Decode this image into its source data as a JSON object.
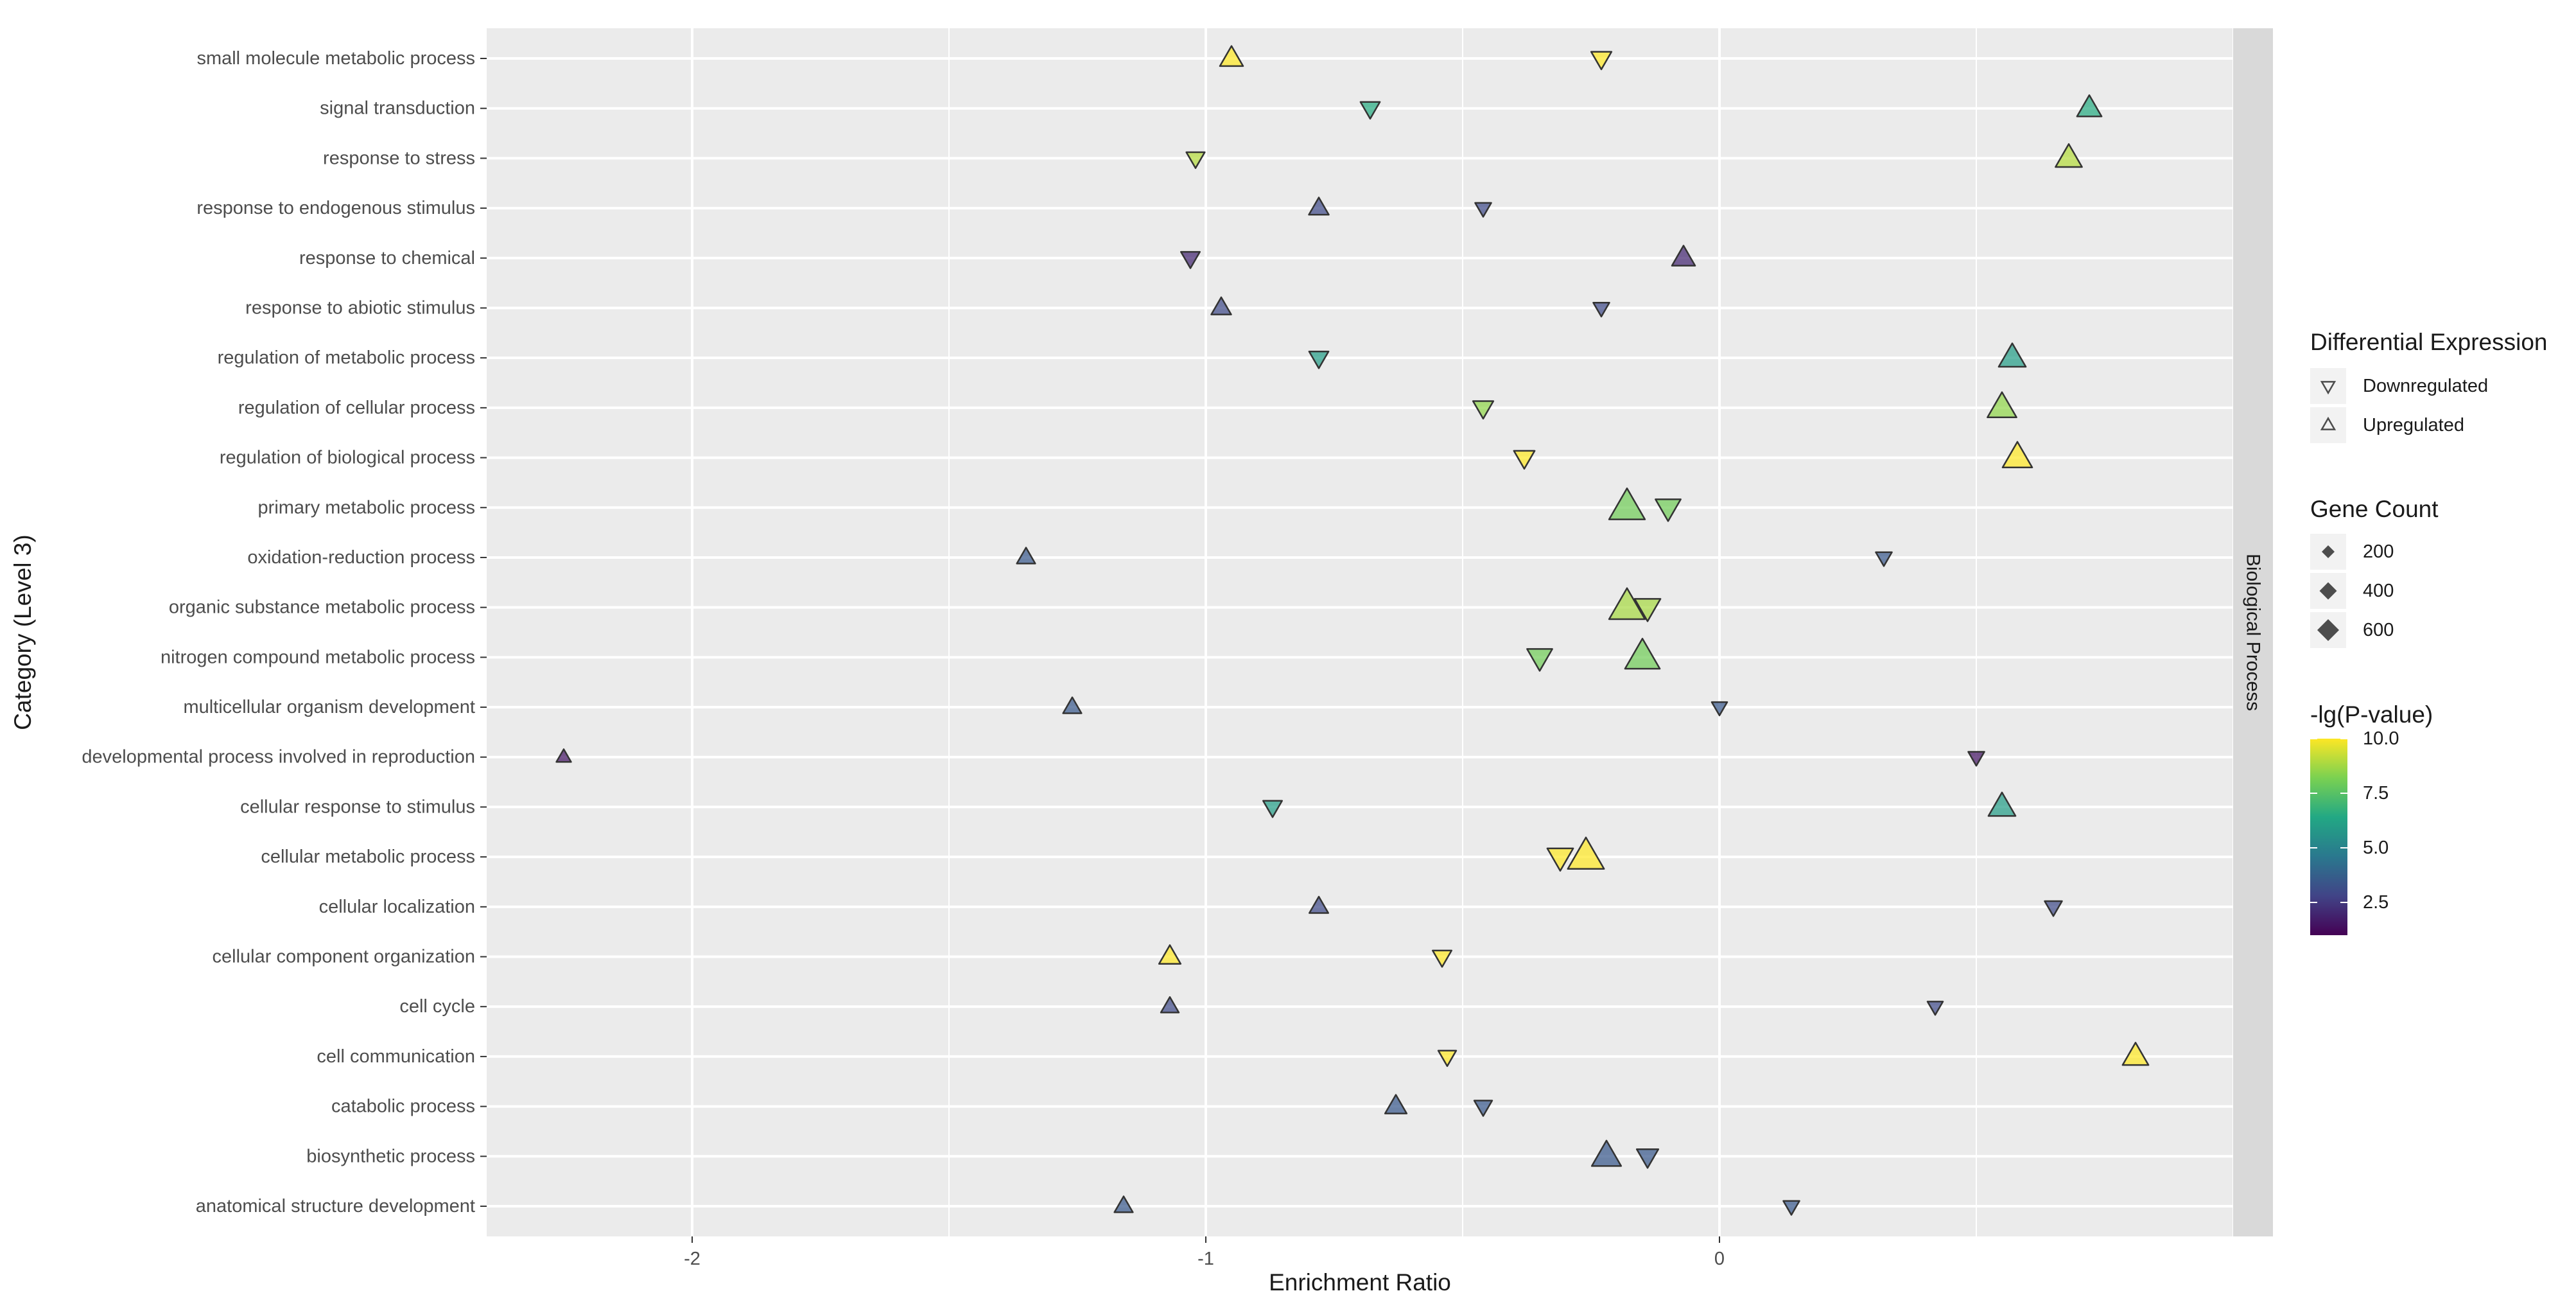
{
  "chart_data": {
    "type": "scatter",
    "xlabel": "Enrichment Ratio",
    "ylabel": "Category (Level 3)",
    "facet_label": "Biological Process",
    "xlim": [
      -2.4,
      1.0
    ],
    "x_ticks": [
      -2,
      -1,
      0
    ],
    "x_tick_labels": [
      "-2",
      "-1",
      "0"
    ],
    "grid": true,
    "legend_position": "right",
    "categories": [
      "anatomical structure development",
      "biosynthetic process",
      "catabolic process",
      "cell communication",
      "cell cycle",
      "cellular component organization",
      "cellular localization",
      "cellular metabolic process",
      "cellular response to stimulus",
      "developmental process involved in reproduction",
      "multicellular organism development",
      "nitrogen compound metabolic process",
      "organic substance metabolic process",
      "oxidation-reduction process",
      "primary metabolic process",
      "regulation of biological process",
      "regulation of cellular process",
      "regulation of metabolic process",
      "response to abiotic stimulus",
      "response to chemical",
      "response to endogenous stimulus",
      "response to stress",
      "signal transduction",
      "small molecule metabolic process"
    ],
    "points": [
      {
        "category": "small molecule metabolic process",
        "direction": "Upregulated",
        "x": -0.95,
        "gene_count": 220,
        "neg_log_p": 10.0
      },
      {
        "category": "small molecule metabolic process",
        "direction": "Downregulated",
        "x": -0.23,
        "gene_count": 150,
        "neg_log_p": 10.0
      },
      {
        "category": "signal transduction",
        "direction": "Downregulated",
        "x": -0.68,
        "gene_count": 130,
        "neg_log_p": 6.5
      },
      {
        "category": "signal transduction",
        "direction": "Upregulated",
        "x": 0.72,
        "gene_count": 260,
        "neg_log_p": 6.5
      },
      {
        "category": "response to stress",
        "direction": "Downregulated",
        "x": -1.02,
        "gene_count": 110,
        "neg_log_p": 9.0
      },
      {
        "category": "response to stress",
        "direction": "Upregulated",
        "x": 0.68,
        "gene_count": 320,
        "neg_log_p": 9.0
      },
      {
        "category": "response to endogenous stimulus",
        "direction": "Upregulated",
        "x": -0.78,
        "gene_count": 140,
        "neg_log_p": 3.0
      },
      {
        "category": "response to endogenous stimulus",
        "direction": "Downregulated",
        "x": -0.46,
        "gene_count": 70,
        "neg_log_p": 3.0
      },
      {
        "category": "response to chemical",
        "direction": "Downregulated",
        "x": -1.03,
        "gene_count": 120,
        "neg_log_p": 2.0
      },
      {
        "category": "response to chemical",
        "direction": "Upregulated",
        "x": -0.07,
        "gene_count": 220,
        "neg_log_p": 2.0
      },
      {
        "category": "response to abiotic stimulus",
        "direction": "Upregulated",
        "x": -0.97,
        "gene_count": 140,
        "neg_log_p": 3.0
      },
      {
        "category": "response to abiotic stimulus",
        "direction": "Downregulated",
        "x": -0.23,
        "gene_count": 70,
        "neg_log_p": 3.0
      },
      {
        "category": "regulation of metabolic process",
        "direction": "Downregulated",
        "x": -0.78,
        "gene_count": 130,
        "neg_log_p": 6.0
      },
      {
        "category": "regulation of metabolic process",
        "direction": "Upregulated",
        "x": 0.57,
        "gene_count": 340,
        "neg_log_p": 6.0
      },
      {
        "category": "regulation of cellular process",
        "direction": "Downregulated",
        "x": -0.46,
        "gene_count": 150,
        "neg_log_p": 8.5
      },
      {
        "category": "regulation of cellular process",
        "direction": "Upregulated",
        "x": 0.55,
        "gene_count": 410,
        "neg_log_p": 8.5
      },
      {
        "category": "regulation of biological process",
        "direction": "Downregulated",
        "x": -0.38,
        "gene_count": 160,
        "neg_log_p": 10.0
      },
      {
        "category": "regulation of biological process",
        "direction": "Upregulated",
        "x": 0.58,
        "gene_count": 430,
        "neg_log_p": 10.0
      },
      {
        "category": "primary metabolic process",
        "direction": "Upregulated",
        "x": -0.18,
        "gene_count": 700,
        "neg_log_p": 8.0
      },
      {
        "category": "primary metabolic process",
        "direction": "Downregulated",
        "x": -0.1,
        "gene_count": 280,
        "neg_log_p": 8.0
      },
      {
        "category": "oxidation-reduction process",
        "direction": "Upregulated",
        "x": -1.35,
        "gene_count": 110,
        "neg_log_p": 3.5
      },
      {
        "category": "oxidation-reduction process",
        "direction": "Downregulated",
        "x": 0.32,
        "gene_count": 70,
        "neg_log_p": 3.5
      },
      {
        "category": "organic substance metabolic process",
        "direction": "Upregulated",
        "x": -0.18,
        "gene_count": 700,
        "neg_log_p": 8.8
      },
      {
        "category": "organic substance metabolic process",
        "direction": "Downregulated",
        "x": -0.14,
        "gene_count": 300,
        "neg_log_p": 8.8
      },
      {
        "category": "nitrogen compound metabolic process",
        "direction": "Downregulated",
        "x": -0.35,
        "gene_count": 280,
        "neg_log_p": 8.0
      },
      {
        "category": "nitrogen compound metabolic process",
        "direction": "Upregulated",
        "x": -0.15,
        "gene_count": 650,
        "neg_log_p": 8.0
      },
      {
        "category": "multicellular organism development",
        "direction": "Upregulated",
        "x": -1.26,
        "gene_count": 110,
        "neg_log_p": 3.5
      },
      {
        "category": "multicellular organism development",
        "direction": "Downregulated",
        "x": 0.0,
        "gene_count": 60,
        "neg_log_p": 3.5
      },
      {
        "category": "developmental process involved in reproduction",
        "direction": "Upregulated",
        "x": -2.25,
        "gene_count": 50,
        "neg_log_p": 1.5
      },
      {
        "category": "developmental process involved in reproduction",
        "direction": "Downregulated",
        "x": 0.5,
        "gene_count": 70,
        "neg_log_p": 1.5
      },
      {
        "category": "cellular response to stimulus",
        "direction": "Downregulated",
        "x": -0.87,
        "gene_count": 120,
        "neg_log_p": 6.0
      },
      {
        "category": "cellular response to stimulus",
        "direction": "Upregulated",
        "x": 0.55,
        "gene_count": 340,
        "neg_log_p": 6.0
      },
      {
        "category": "cellular metabolic process",
        "direction": "Downregulated",
        "x": -0.31,
        "gene_count": 300,
        "neg_log_p": 10.0
      },
      {
        "category": "cellular metabolic process",
        "direction": "Upregulated",
        "x": -0.26,
        "gene_count": 720,
        "neg_log_p": 10.0
      },
      {
        "category": "cellular localization",
        "direction": "Upregulated",
        "x": -0.78,
        "gene_count": 120,
        "neg_log_p": 3.0
      },
      {
        "category": "cellular localization",
        "direction": "Downregulated",
        "x": 0.65,
        "gene_count": 90,
        "neg_log_p": 3.0
      },
      {
        "category": "cellular component organization",
        "direction": "Upregulated",
        "x": -1.07,
        "gene_count": 180,
        "neg_log_p": 10.0
      },
      {
        "category": "cellular component organization",
        "direction": "Downregulated",
        "x": -0.54,
        "gene_count": 120,
        "neg_log_p": 10.0
      },
      {
        "category": "cell cycle",
        "direction": "Upregulated",
        "x": -1.07,
        "gene_count": 100,
        "neg_log_p": 3.0
      },
      {
        "category": "cell cycle",
        "direction": "Downregulated",
        "x": 0.42,
        "gene_count": 60,
        "neg_log_p": 3.0
      },
      {
        "category": "cell communication",
        "direction": "Downregulated",
        "x": -0.53,
        "gene_count": 100,
        "neg_log_p": 10.0
      },
      {
        "category": "cell communication",
        "direction": "Upregulated",
        "x": 0.81,
        "gene_count": 300,
        "neg_log_p": 10.0
      },
      {
        "category": "catabolic process",
        "direction": "Upregulated",
        "x": -0.63,
        "gene_count": 180,
        "neg_log_p": 3.5
      },
      {
        "category": "catabolic process",
        "direction": "Downregulated",
        "x": -0.46,
        "gene_count": 100,
        "neg_log_p": 3.5
      },
      {
        "category": "biosynthetic process",
        "direction": "Upregulated",
        "x": -0.22,
        "gene_count": 420,
        "neg_log_p": 3.5
      },
      {
        "category": "biosynthetic process",
        "direction": "Downregulated",
        "x": -0.14,
        "gene_count": 180,
        "neg_log_p": 3.5
      },
      {
        "category": "anatomical structure development",
        "direction": "Upregulated",
        "x": -1.16,
        "gene_count": 110,
        "neg_log_p": 3.5
      },
      {
        "category": "anatomical structure development",
        "direction": "Downregulated",
        "x": 0.14,
        "gene_count": 70,
        "neg_log_p": 3.5
      }
    ],
    "legend": {
      "shape": {
        "title": "Differential Expression",
        "entries": [
          "Downregulated",
          "Upregulated"
        ]
      },
      "size": {
        "title": "Gene Count",
        "entries": [
          "200",
          "400",
          "600"
        ],
        "values": [
          200,
          400,
          600
        ]
      },
      "color": {
        "title": "-lg(P-value)",
        "range": [
          1.0,
          10.0
        ],
        "ticks": [
          2.5,
          5.0,
          7.5,
          10.0
        ],
        "tick_labels": [
          "2.5",
          "5.0",
          "7.5",
          "10.0"
        ],
        "palette": [
          "#440154",
          "#414487",
          "#2a788e",
          "#22a884",
          "#7ad151",
          "#fde725"
        ]
      }
    },
    "colors": {
      "panel_background": "#ebebeb",
      "grid": "#ffffff",
      "strip_background": "#d9d9d9",
      "point_stroke": "#333333"
    }
  }
}
